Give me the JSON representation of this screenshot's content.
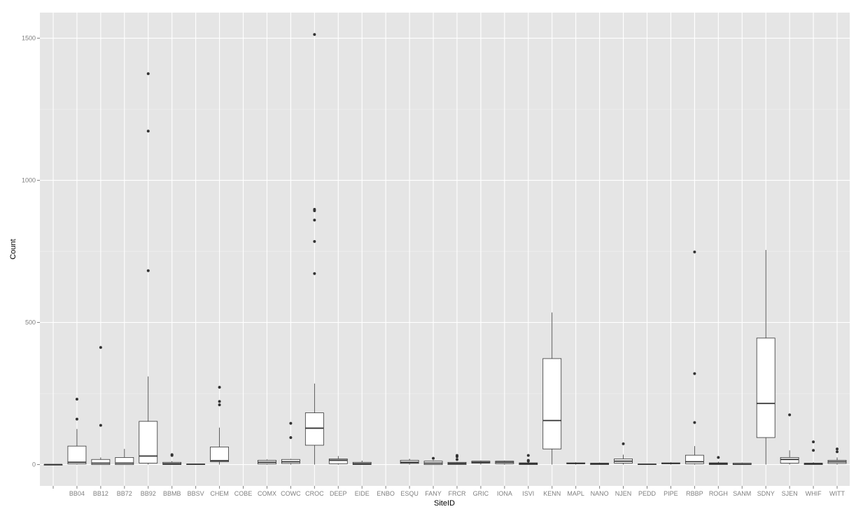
{
  "chart_data": {
    "type": "boxplot",
    "title": "",
    "xlabel": "SiteID",
    "ylabel": "Count",
    "ylim": [
      -75,
      1590
    ],
    "yticks": [
      0,
      500,
      1000,
      1500
    ],
    "grid": true,
    "colors": {
      "panel": "#e5e5e5",
      "grid_major": "#ffffff",
      "grid_minor": "#f2f2f2",
      "box_fill": "#ffffff",
      "box_stroke": "#333333",
      "tick_label": "#7f7f7f",
      "axis_title": "#000000"
    },
    "categories": [
      "",
      "BB04",
      "BB12",
      "BB72",
      "BB92",
      "BBMB",
      "BBSV",
      "CHEM",
      "COBE",
      "COMX",
      "COWC",
      "CROC",
      "DEEP",
      "EIDE",
      "ENBO",
      "ESQU",
      "FANY",
      "FRCR",
      "GRIC",
      "IONA",
      "ISVI",
      "KENN",
      "MAPL",
      "NANO",
      "NJEN",
      "PEDD",
      "PIPE",
      "RBBP",
      "ROGH",
      "SANM",
      "SDNY",
      "SJEN",
      "WHIF",
      "WITT"
    ],
    "boxes": [
      {
        "site": "",
        "min": 0,
        "q1": 0,
        "median": 0,
        "q3": 0,
        "max": 0,
        "outliers": []
      },
      {
        "site": "BB04",
        "min": 0,
        "q1": 2,
        "median": 8,
        "q3": 65,
        "max": 125,
        "outliers": [
          160,
          230
        ]
      },
      {
        "site": "BB12",
        "min": 0,
        "q1": 0,
        "median": 5,
        "q3": 18,
        "max": 25,
        "outliers": [
          138,
          412
        ]
      },
      {
        "site": "BB72",
        "min": 0,
        "q1": 0,
        "median": 5,
        "q3": 25,
        "max": 55,
        "outliers": []
      },
      {
        "site": "BB92",
        "min": 0,
        "q1": 5,
        "median": 30,
        "q3": 152,
        "max": 310,
        "outliers": [
          682,
          1173,
          1375
        ]
      },
      {
        "site": "BBMB",
        "min": 0,
        "q1": 0,
        "median": 3,
        "q3": 8,
        "max": 12,
        "outliers": [
          32,
          35
        ]
      },
      {
        "site": "BBSV",
        "min": 0,
        "q1": 0,
        "median": 1,
        "q3": 2,
        "max": 3,
        "outliers": []
      },
      {
        "site": "CHEM",
        "min": 0,
        "q1": 10,
        "median": 14,
        "q3": 62,
        "max": 130,
        "outliers": [
          210,
          222,
          272
        ]
      },
      {
        "site": "COBE",
        "min": null,
        "q1": null,
        "median": null,
        "q3": null,
        "max": null,
        "outliers": []
      },
      {
        "site": "COMX",
        "min": 0,
        "q1": 2,
        "median": 8,
        "q3": 15,
        "max": 18,
        "outliers": []
      },
      {
        "site": "COWC",
        "min": 0,
        "q1": 4,
        "median": 10,
        "q3": 18,
        "max": 20,
        "outliers": [
          95,
          145
        ]
      },
      {
        "site": "CROC",
        "min": 0,
        "q1": 68,
        "median": 128,
        "q3": 182,
        "max": 285,
        "outliers": [
          672,
          785,
          860,
          893,
          898,
          1513
        ]
      },
      {
        "site": "DEEP",
        "min": 0,
        "q1": 3,
        "median": 15,
        "q3": 20,
        "max": 30,
        "outliers": []
      },
      {
        "site": "EIDE",
        "min": 0,
        "q1": 0,
        "median": 3,
        "q3": 8,
        "max": 14,
        "outliers": []
      },
      {
        "site": "ENBO",
        "min": null,
        "q1": null,
        "median": null,
        "q3": null,
        "max": null,
        "outliers": []
      },
      {
        "site": "ESQU",
        "min": 0,
        "q1": 4,
        "median": 8,
        "q3": 15,
        "max": 20,
        "outliers": []
      },
      {
        "site": "FANY",
        "min": 0,
        "q1": 0,
        "median": 5,
        "q3": 12,
        "max": 15,
        "outliers": [
          22
        ]
      },
      {
        "site": "FRCR",
        "min": 0,
        "q1": 0,
        "median": 4,
        "q3": 8,
        "max": 10,
        "outliers": [
          18,
          28,
          32
        ]
      },
      {
        "site": "GRIC",
        "min": 0,
        "q1": 5,
        "median": 8,
        "q3": 12,
        "max": 14,
        "outliers": []
      },
      {
        "site": "IONA",
        "min": 0,
        "q1": 3,
        "median": 8,
        "q3": 12,
        "max": 14,
        "outliers": []
      },
      {
        "site": "ISVI",
        "min": 0,
        "q1": 0,
        "median": 3,
        "q3": 6,
        "max": 10,
        "outliers": [
          12,
          15,
          32
        ]
      },
      {
        "site": "KENN",
        "min": 0,
        "q1": 55,
        "median": 155,
        "q3": 373,
        "max": 535,
        "outliers": []
      },
      {
        "site": "MAPL",
        "min": 0,
        "q1": 3,
        "median": 4,
        "q3": 6,
        "max": 8,
        "outliers": []
      },
      {
        "site": "NANO",
        "min": 0,
        "q1": 0,
        "median": 3,
        "q3": 5,
        "max": 7,
        "outliers": []
      },
      {
        "site": "NJEN",
        "min": 0,
        "q1": 5,
        "median": 12,
        "q3": 20,
        "max": 35,
        "outliers": [
          73
        ]
      },
      {
        "site": "PEDD",
        "min": 0,
        "q1": 0,
        "median": 1,
        "q3": 2,
        "max": 3,
        "outliers": []
      },
      {
        "site": "PIPE",
        "min": 0,
        "q1": 3,
        "median": 4,
        "q3": 6,
        "max": 8,
        "outliers": []
      },
      {
        "site": "RBBP",
        "min": 0,
        "q1": 3,
        "median": 10,
        "q3": 33,
        "max": 65,
        "outliers": [
          148,
          320,
          748
        ]
      },
      {
        "site": "ROGH",
        "min": 0,
        "q1": 0,
        "median": 3,
        "q3": 6,
        "max": 10,
        "outliers": [
          25
        ]
      },
      {
        "site": "SANM",
        "min": 0,
        "q1": 0,
        "median": 1,
        "q3": 5,
        "max": 7,
        "outliers": []
      },
      {
        "site": "SDNY",
        "min": 0,
        "q1": 95,
        "median": 215,
        "q3": 445,
        "max": 755,
        "outliers": []
      },
      {
        "site": "SJEN",
        "min": 0,
        "q1": 5,
        "median": 18,
        "q3": 25,
        "max": 50,
        "outliers": [
          175
        ]
      },
      {
        "site": "WHIF",
        "min": 0,
        "q1": 0,
        "median": 3,
        "q3": 5,
        "max": 8,
        "outliers": [
          50,
          80
        ]
      },
      {
        "site": "WITT",
        "min": 0,
        "q1": 4,
        "median": 10,
        "q3": 15,
        "max": 25,
        "outliers": [
          45,
          55
        ]
      }
    ]
  }
}
